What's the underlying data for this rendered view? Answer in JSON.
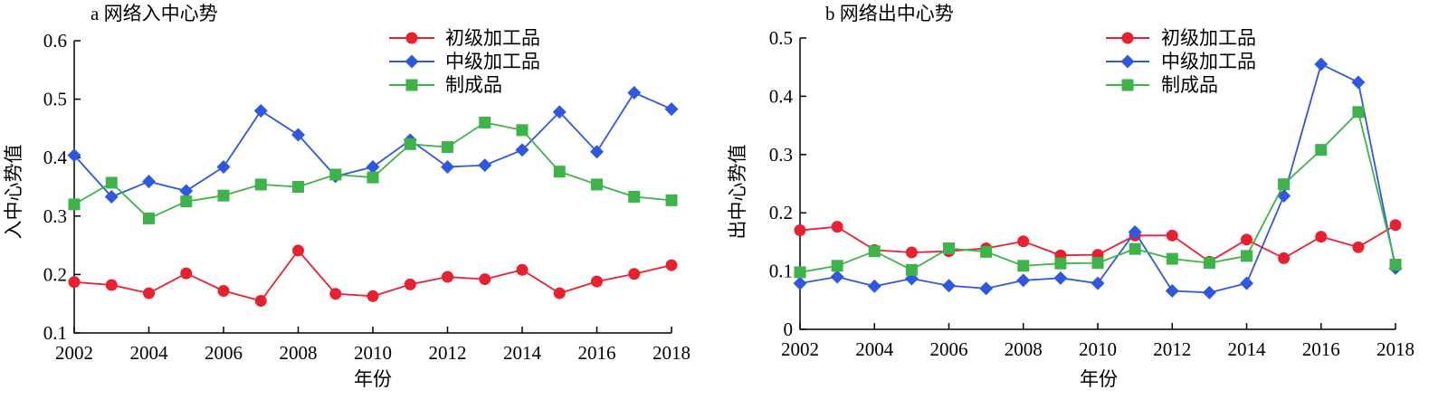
{
  "chart_data": [
    {
      "type": "line",
      "title": "a 网络入中心势",
      "xlabel": "年份",
      "ylabel": "入中心势值",
      "x": [
        2002,
        2003,
        2004,
        2005,
        2006,
        2007,
        2008,
        2009,
        2010,
        2011,
        2012,
        2013,
        2014,
        2015,
        2016,
        2017,
        2018
      ],
      "xticks": [
        "2002",
        "2004",
        "2006",
        "2008",
        "2010",
        "2012",
        "2014",
        "2016",
        "2018"
      ],
      "yticks": [
        "0.1",
        "0.2",
        "0.3",
        "0.4",
        "0.5",
        "0.6"
      ],
      "xlim": [
        2002,
        2018
      ],
      "ylim": [
        0.1,
        0.6
      ],
      "legend_position": "top-center",
      "grid": false,
      "series": [
        {
          "name": "初级加工品",
          "marker": "circle",
          "color": "#e8202f",
          "values": [
            0.187,
            0.182,
            0.168,
            0.202,
            0.172,
            0.155,
            0.241,
            0.167,
            0.163,
            0.183,
            0.196,
            0.192,
            0.208,
            0.168,
            0.188,
            0.201,
            0.216
          ]
        },
        {
          "name": "中级加工品",
          "marker": "diamond",
          "color": "#2f57e0",
          "values": [
            0.404,
            0.333,
            0.359,
            0.343,
            0.384,
            0.48,
            0.439,
            0.368,
            0.384,
            0.43,
            0.384,
            0.387,
            0.413,
            0.478,
            0.41,
            0.511,
            0.483
          ]
        },
        {
          "name": "制成品",
          "marker": "square",
          "color": "#3db34a",
          "values": [
            0.32,
            0.357,
            0.296,
            0.325,
            0.335,
            0.354,
            0.35,
            0.371,
            0.366,
            0.423,
            0.418,
            0.46,
            0.447,
            0.376,
            0.354,
            0.333,
            0.327
          ]
        }
      ]
    },
    {
      "type": "line",
      "title": "b 网络出中心势",
      "xlabel": "年份",
      "ylabel": "出中心势值",
      "x": [
        2002,
        2003,
        2004,
        2005,
        2006,
        2007,
        2008,
        2009,
        2010,
        2011,
        2012,
        2013,
        2014,
        2015,
        2016,
        2017,
        2018
      ],
      "xticks": [
        "2002",
        "2004",
        "2006",
        "2008",
        "2010",
        "2012",
        "2014",
        "2016",
        "2018"
      ],
      "yticks": [
        "0",
        "0.1",
        "0.2",
        "0.3",
        "0.4",
        "0.5"
      ],
      "xlim": [
        2002,
        2018
      ],
      "ylim": [
        0,
        0.5
      ],
      "legend_position": "top-center",
      "grid": false,
      "series": [
        {
          "name": "初级加工品",
          "marker": "circle",
          "color": "#e8202f",
          "values": [
            0.17,
            0.176,
            0.136,
            0.132,
            0.134,
            0.139,
            0.151,
            0.127,
            0.128,
            0.161,
            0.161,
            0.116,
            0.154,
            0.122,
            0.159,
            0.141,
            0.179
          ]
        },
        {
          "name": "中级加工品",
          "marker": "diamond",
          "color": "#2f57e0",
          "values": [
            0.079,
            0.09,
            0.074,
            0.087,
            0.075,
            0.07,
            0.084,
            0.088,
            0.079,
            0.167,
            0.066,
            0.063,
            0.079,
            0.229,
            0.455,
            0.424,
            0.105
          ]
        },
        {
          "name": "制成品",
          "marker": "square",
          "color": "#3db34a",
          "values": [
            0.098,
            0.109,
            0.134,
            0.102,
            0.139,
            0.133,
            0.109,
            0.113,
            0.114,
            0.138,
            0.121,
            0.114,
            0.126,
            0.249,
            0.308,
            0.373,
            0.111
          ]
        }
      ]
    }
  ]
}
